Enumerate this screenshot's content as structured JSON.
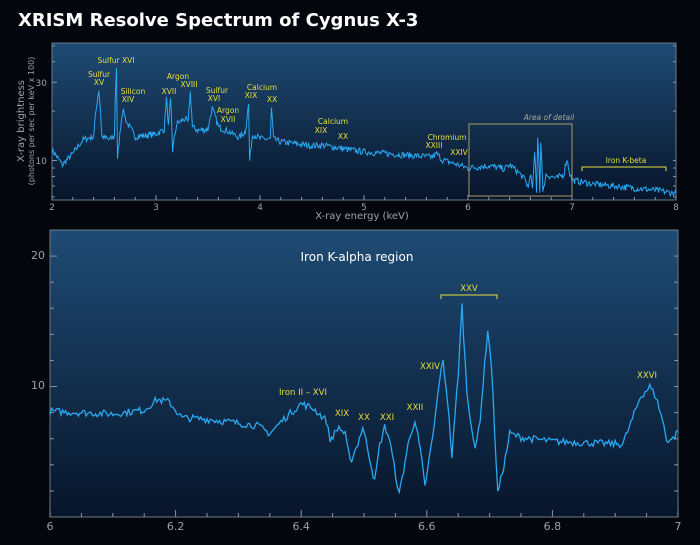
{
  "title": "XRISM Resolve Spectrum of Cygnus X-3",
  "colors": {
    "background": "#03060c",
    "panel_top": "#1f4b74",
    "panel_bottom": "#07152a",
    "line": "#2aa8f2",
    "label": "#e6df3c",
    "axis": "#9aa3ad"
  },
  "chart_data": [
    {
      "type": "line",
      "xlabel": "X-ray energy (keV)",
      "ylabel": "X-ray brightness",
      "ylabel_sub": "(photons per sec per keV x 100)",
      "yscale": "log",
      "xlim": [
        2,
        8
      ],
      "ylim": [
        5.75,
        52
      ],
      "xticks": [
        "2",
        "3",
        "4",
        "5",
        "6",
        "7",
        "8"
      ],
      "yticks": [
        "10",
        "30"
      ],
      "points": [
        [
          2.0,
          11.6
        ],
        [
          2.1,
          9.4
        ],
        [
          2.2,
          11
        ],
        [
          2.3,
          13.4
        ],
        [
          2.4,
          14
        ],
        [
          2.45,
          27
        ],
        [
          2.48,
          14
        ],
        [
          2.55,
          13.4
        ],
        [
          2.6,
          14
        ],
        [
          2.62,
          37
        ],
        [
          2.63,
          10
        ],
        [
          2.66,
          16
        ],
        [
          2.68,
          20.5
        ],
        [
          2.72,
          17
        ],
        [
          2.8,
          14
        ],
        [
          2.9,
          14.2
        ],
        [
          3.0,
          14.5
        ],
        [
          3.08,
          15.5
        ],
        [
          3.1,
          24
        ],
        [
          3.12,
          16
        ],
        [
          3.14,
          23
        ],
        [
          3.16,
          11.5
        ],
        [
          3.2,
          16.8
        ],
        [
          3.28,
          18
        ],
        [
          3.31,
          17
        ],
        [
          3.33,
          26
        ],
        [
          3.35,
          16
        ],
        [
          3.4,
          15.3
        ],
        [
          3.5,
          15.5
        ],
        [
          3.54,
          20.8
        ],
        [
          3.6,
          16
        ],
        [
          3.7,
          15
        ],
        [
          3.8,
          13.8
        ],
        [
          3.86,
          15
        ],
        [
          3.89,
          22
        ],
        [
          3.9,
          10
        ],
        [
          3.93,
          14.5
        ],
        [
          4.0,
          13.6
        ],
        [
          4.1,
          13.5
        ],
        [
          4.11,
          20.8
        ],
        [
          4.13,
          13.5
        ],
        [
          4.2,
          13
        ],
        [
          4.5,
          12.3
        ],
        [
          4.6,
          12.4
        ],
        [
          4.8,
          11.8
        ],
        [
          5.0,
          11.3
        ],
        [
          5.4,
          10.8
        ],
        [
          5.65,
          10.5
        ],
        [
          5.7,
          11
        ],
        [
          5.75,
          10.1
        ],
        [
          6.0,
          9.0
        ],
        [
          6.2,
          9.3
        ],
        [
          6.35,
          8.9
        ],
        [
          6.4,
          9.4
        ],
        [
          6.5,
          8.3
        ],
        [
          6.55,
          7.6
        ],
        [
          6.58,
          6.8
        ],
        [
          6.6,
          8.5
        ],
        [
          6.62,
          6.5
        ],
        [
          6.64,
          11
        ],
        [
          6.66,
          6.3
        ],
        [
          6.67,
          14.2
        ],
        [
          6.69,
          6.4
        ],
        [
          6.7,
          13.4
        ],
        [
          6.72,
          6.3
        ],
        [
          6.75,
          8.2
        ],
        [
          6.85,
          7.8
        ],
        [
          6.92,
          8.2
        ],
        [
          6.95,
          10.2
        ],
        [
          6.98,
          8.3
        ],
        [
          7.0,
          7.6
        ],
        [
          7.2,
          7.2
        ],
        [
          7.5,
          6.9
        ],
        [
          7.8,
          6.6
        ],
        [
          8.0,
          6.3
        ]
      ],
      "annotations": [
        "Sulfur",
        "XV",
        "Sulfur XVI",
        "Silicon",
        "XIV",
        "XVII",
        "Argon",
        "XVIII",
        "Sulfur",
        "XVI",
        "Argon",
        "XVII",
        "Calcium",
        "XIX",
        "XX",
        "Calcium",
        "XIX",
        "XX",
        "Chromium",
        "XXIII",
        "XXIV",
        "Iron K-beta"
      ],
      "detail_box_label": "Area of detail",
      "detail_box_range": [
        6,
        7
      ]
    },
    {
      "type": "line",
      "title": "Iron K-alpha region",
      "yscale": "linear",
      "xlim": [
        6,
        7
      ],
      "ylim": [
        0,
        22
      ],
      "xticks": [
        "6",
        "6.2",
        "6.4",
        "6.6",
        "6.8",
        "7"
      ],
      "yticks": [
        "10",
        "20"
      ],
      "points": [
        [
          6.0,
          8.1
        ],
        [
          6.05,
          8.0
        ],
        [
          6.1,
          7.9
        ],
        [
          6.15,
          8.2
        ],
        [
          6.17,
          9.0
        ],
        [
          6.19,
          8.8
        ],
        [
          6.21,
          7.6
        ],
        [
          6.25,
          7.5
        ],
        [
          6.3,
          7.2
        ],
        [
          6.33,
          7.0
        ],
        [
          6.35,
          6.4
        ],
        [
          6.37,
          7.4
        ],
        [
          6.4,
          8.7
        ],
        [
          6.42,
          8.3
        ],
        [
          6.44,
          7.4
        ],
        [
          6.446,
          5.9
        ],
        [
          6.46,
          6.9
        ],
        [
          6.47,
          6.3
        ],
        [
          6.478,
          4.2
        ],
        [
          6.49,
          5.6
        ],
        [
          6.498,
          6.9
        ],
        [
          6.508,
          4.8
        ],
        [
          6.517,
          2.7
        ],
        [
          6.525,
          5.5
        ],
        [
          6.533,
          6.9
        ],
        [
          6.54,
          6.1
        ],
        [
          6.556,
          1.7
        ],
        [
          6.57,
          5.5
        ],
        [
          6.581,
          7.5
        ],
        [
          6.59,
          5
        ],
        [
          6.597,
          2.3
        ],
        [
          6.612,
          7
        ],
        [
          6.62,
          10.5
        ],
        [
          6.626,
          11.9
        ],
        [
          6.633,
          9
        ],
        [
          6.64,
          4.6
        ],
        [
          6.65,
          11
        ],
        [
          6.656,
          16.2
        ],
        [
          6.664,
          9.5
        ],
        [
          6.677,
          5.0
        ],
        [
          6.685,
          7.6
        ],
        [
          6.697,
          14.4
        ],
        [
          6.703,
          11.5
        ],
        [
          6.713,
          1.8
        ],
        [
          6.725,
          4.5
        ],
        [
          6.732,
          6.4
        ],
        [
          6.75,
          6.1
        ],
        [
          6.8,
          5.8
        ],
        [
          6.85,
          5.7
        ],
        [
          6.9,
          5.6
        ],
        [
          6.912,
          5.6
        ],
        [
          6.925,
          7.2
        ],
        [
          6.94,
          9.2
        ],
        [
          6.955,
          10.0
        ],
        [
          6.965,
          9.2
        ],
        [
          6.975,
          7.5
        ],
        [
          6.982,
          5.9
        ],
        [
          6.992,
          6.0
        ],
        [
          7.0,
          6.6
        ]
      ],
      "annotations": [
        "Iron II – XVI",
        "XIX",
        "XX",
        "XXI",
        "XXII",
        "XXIV",
        "XXV",
        "XXVI"
      ]
    }
  ]
}
